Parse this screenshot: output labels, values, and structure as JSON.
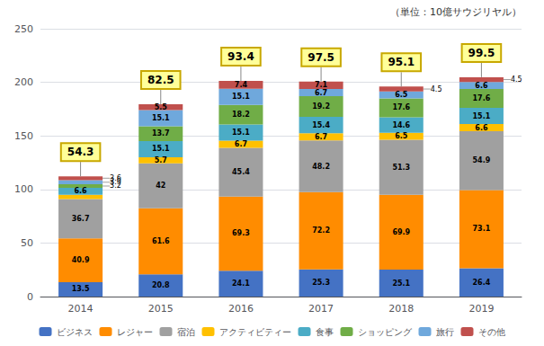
{
  "chart_data": {
    "type": "bar",
    "stacked": true,
    "data_labels": true,
    "grid": true,
    "legend": "bottom",
    "annotations": [
      "（単位：10億サウジリヤル）"
    ],
    "categories": [
      "2014",
      "2015",
      "2016",
      "2017",
      "2018",
      "2019"
    ],
    "totals": [
      54.3,
      82.5,
      93.4,
      97.5,
      95.1,
      99.5
    ],
    "series": [
      {
        "name": "ビジネス",
        "color": "#4472c4",
        "values": [
          13.5,
          20.8,
          24.1,
          25.3,
          25.1,
          26.4
        ],
        "value_labels": [
          "13.5",
          "20.8",
          "24.1",
          "25.3",
          "25.1",
          "26.4"
        ]
      },
      {
        "name": "レジャー",
        "color": "#ff8c00",
        "values": [
          40.9,
          61.6,
          69.3,
          72.2,
          69.9,
          73.1
        ],
        "value_labels": [
          "40.9",
          "61.6",
          "69.3",
          "72.2",
          "69.9",
          "73.1"
        ]
      },
      {
        "name": "宿泊",
        "color": "#a0a0a0",
        "values": [
          36.7,
          42.0,
          45.4,
          48.2,
          51.3,
          54.9
        ],
        "value_labels": [
          "36.7",
          "42",
          "45.4",
          "48.2",
          "51.3",
          "54.9"
        ]
      },
      {
        "name": "アクティビティー",
        "color": "#ffc000",
        "values": [
          3.9,
          5.7,
          6.7,
          6.7,
          6.5,
          6.6
        ],
        "value_labels": [
          null,
          "5.7",
          "6.7",
          "6.7",
          "6.5",
          "6.6"
        ]
      },
      {
        "name": "食事",
        "color": "#4bacc6",
        "values": [
          6.6,
          15.1,
          15.1,
          15.4,
          14.6,
          15.1
        ],
        "value_labels": [
          "6.6",
          "15.1",
          "15.1",
          "15.4",
          "14.6",
          "15.1"
        ]
      },
      {
        "name": "ショッピング",
        "color": "#70ad47",
        "values": [
          3.2,
          13.7,
          18.2,
          19.2,
          17.6,
          17.6
        ],
        "value_labels": [
          "3.2",
          "13.7",
          "18.2",
          "19.2",
          "17.6",
          "17.6"
        ]
      },
      {
        "name": "旅行",
        "color": "#6fa8dc",
        "values": [
          3.9,
          15.1,
          15.1,
          6.7,
          6.5,
          6.6
        ],
        "value_labels": [
          "3.9",
          "15.1",
          "15.1",
          "6.7",
          "6.5",
          "6.6"
        ]
      },
      {
        "name": "その他",
        "color": "#c0504d",
        "values": [
          3.6,
          5.5,
          7.4,
          7.1,
          4.5,
          4.5
        ],
        "value_labels": [
          "3.6",
          "5.5",
          "7.4",
          "7.1",
          "4.5",
          "4.5"
        ]
      }
    ],
    "ylim": [
      0,
      250
    ],
    "yticks": [
      0,
      50,
      100,
      150,
      200,
      250
    ]
  }
}
